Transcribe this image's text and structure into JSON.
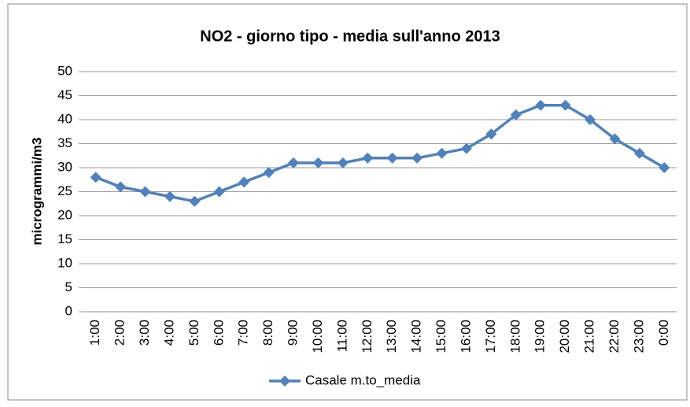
{
  "chart_data": {
    "type": "line",
    "title": "NO2 - giorno tipo - media sull'anno 2013",
    "y_label": "microgrammi/m3",
    "categories": [
      "1:00",
      "2:00",
      "3:00",
      "4:00",
      "5:00",
      "6:00",
      "7:00",
      "8:00",
      "9:00",
      "10:00",
      "11:00",
      "12:00",
      "13:00",
      "14:00",
      "15:00",
      "16:00",
      "17:00",
      "18:00",
      "19:00",
      "20:00",
      "21:00",
      "22:00",
      "23:00",
      "0:00"
    ],
    "series": [
      {
        "name": "Casale m.to_media",
        "color": "#4f81bd",
        "values": [
          28,
          26,
          25,
          24,
          23,
          25,
          27,
          29,
          31,
          31,
          31,
          32,
          32,
          32,
          33,
          34,
          37,
          41,
          43,
          43,
          40,
          36,
          33,
          30
        ]
      }
    ],
    "ylim": [
      0,
      50
    ],
    "yticks": [
      0,
      5,
      10,
      15,
      20,
      25,
      30,
      35,
      40,
      45,
      50
    ],
    "grid": true,
    "legend": "bottom"
  }
}
